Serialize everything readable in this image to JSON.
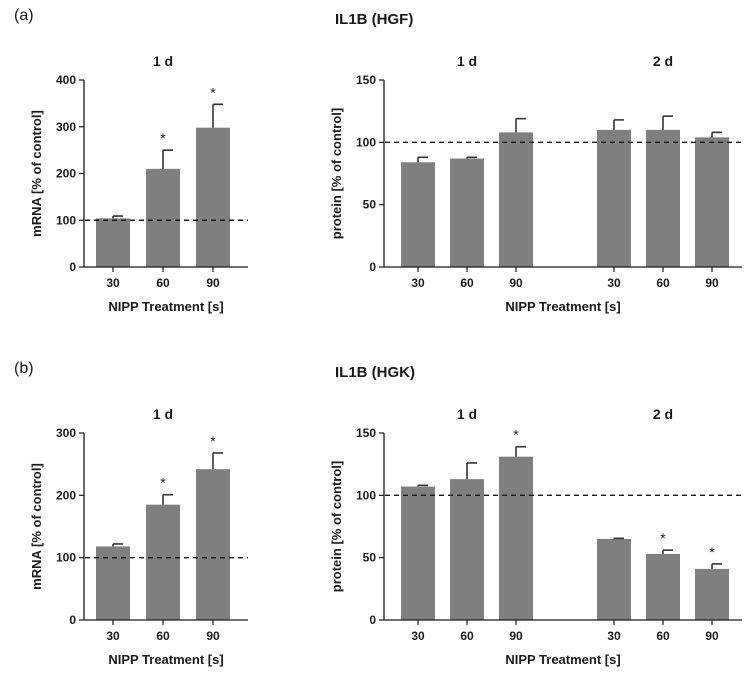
{
  "figure": {
    "panels": [
      {
        "label": "(a)",
        "title": "IL1B (HGF)"
      },
      {
        "label": "(b)",
        "title": "IL1B (HGK)"
      }
    ],
    "colors": {
      "bar": "#7f7f7f",
      "axis": "#1a1a1a",
      "control_line": "#1a1a1a"
    }
  },
  "chart_data": [
    {
      "id": "a_mrna",
      "type": "bar",
      "title": "",
      "xlabel": "NIPP Treatment [s]",
      "ylabel": "mRNA [% of control]",
      "ylim": [
        0,
        400
      ],
      "yticks": [
        0,
        100,
        200,
        300,
        400
      ],
      "reference_line": 100,
      "groups": [
        {
          "label": "1 d",
          "categories": [
            "30",
            "60",
            "90"
          ],
          "values": [
            104,
            210,
            298
          ],
          "errors": [
            5,
            40,
            50
          ],
          "significant": [
            false,
            true,
            true
          ]
        }
      ]
    },
    {
      "id": "a_protein",
      "type": "bar",
      "title": "",
      "xlabel": "NIPP Treatment [s]",
      "ylabel": "protein [% of control]",
      "ylim": [
        0,
        150
      ],
      "yticks": [
        0,
        50,
        100,
        150
      ],
      "reference_line": 100,
      "groups": [
        {
          "label": "1 d",
          "categories": [
            "30",
            "60",
            "90"
          ],
          "values": [
            84,
            87,
            108
          ],
          "errors": [
            4,
            1,
            11
          ],
          "significant": [
            false,
            false,
            false
          ]
        },
        {
          "label": "2 d",
          "categories": [
            "30",
            "60",
            "90"
          ],
          "values": [
            110,
            110,
            104
          ],
          "errors": [
            8,
            11,
            4
          ],
          "significant": [
            false,
            false,
            false
          ]
        }
      ]
    },
    {
      "id": "b_mrna",
      "type": "bar",
      "title": "",
      "xlabel": "NIPP Treatment [s]",
      "ylabel": "mRNA [% of control]",
      "ylim": [
        0,
        300
      ],
      "yticks": [
        0,
        100,
        200,
        300
      ],
      "reference_line": 100,
      "groups": [
        {
          "label": "1 d",
          "categories": [
            "30",
            "60",
            "90"
          ],
          "values": [
            118,
            185,
            242
          ],
          "errors": [
            4,
            16,
            26
          ],
          "significant": [
            false,
            true,
            true
          ]
        }
      ]
    },
    {
      "id": "b_protein",
      "type": "bar",
      "title": "",
      "xlabel": "NIPP Treatment [s]",
      "ylabel": "protein [% of control]",
      "ylim": [
        0,
        150
      ],
      "yticks": [
        0,
        50,
        100,
        150
      ],
      "reference_line": 100,
      "groups": [
        {
          "label": "1 d",
          "categories": [
            "30",
            "60",
            "90"
          ],
          "values": [
            107,
            113,
            131
          ],
          "errors": [
            1,
            13,
            8
          ],
          "significant": [
            false,
            false,
            true
          ]
        },
        {
          "label": "2 d",
          "categories": [
            "30",
            "60",
            "90"
          ],
          "values": [
            65,
            53,
            41
          ],
          "errors": [
            0.5,
            3,
            4
          ],
          "significant": [
            false,
            true,
            true
          ]
        }
      ]
    }
  ]
}
